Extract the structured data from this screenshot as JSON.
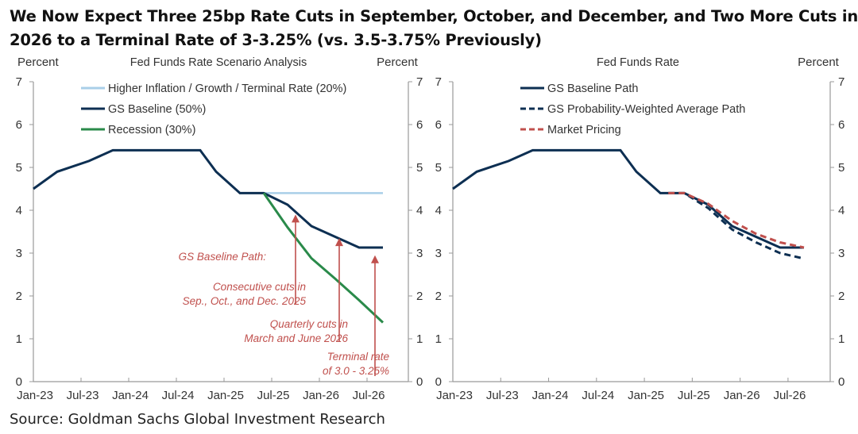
{
  "title": "We Now Expect Three 25bp Rate Cuts in September, October, and December, and Two More Cuts in 2026 to a Terminal Rate of 3-3.25% (vs. 3.5-3.75% Previously)",
  "source": "Source: Goldman Sachs Global Investment Research",
  "colors": {
    "baseline": "#0d2f52",
    "higher_inflation": "#a9cfe8",
    "recession": "#2a8a4a",
    "prob_weighted": "#0d2f52",
    "market": "#c0504d",
    "annotation": "#c0504d",
    "axis": "#999999"
  },
  "chart_data": [
    {
      "type": "line",
      "title": "Fed Funds Rate Scenario Analysis",
      "ylabel_left": "Percent",
      "ylabel_right": "Percent",
      "ylim": [
        0,
        7
      ],
      "yticks": [
        0,
        1,
        2,
        3,
        4,
        5,
        6,
        7
      ],
      "xlim_months": [
        0,
        44
      ],
      "xticks": [
        {
          "label": "Jan-23",
          "m": 0
        },
        {
          "label": "Jul-23",
          "m": 6
        },
        {
          "label": "Jan-24",
          "m": 12
        },
        {
          "label": "Jul-24",
          "m": 18
        },
        {
          "label": "Jan-25",
          "m": 24
        },
        {
          "label": "Jul-25",
          "m": 30
        },
        {
          "label": "Jan-26",
          "m": 36
        },
        {
          "label": "Jul-26",
          "m": 42
        }
      ],
      "legend_position": "top-left",
      "series": [
        {
          "key": "higher_inflation",
          "name": "Higher Inflation / Growth / Terminal Rate (20%)",
          "style": "solid",
          "points": [
            [
              29,
              4.4
            ],
            [
              44,
              4.4
            ]
          ]
        },
        {
          "key": "baseline",
          "name": "GS Baseline (50%)",
          "style": "solid",
          "points": [
            [
              0,
              4.5
            ],
            [
              3,
              4.9
            ],
            [
              7,
              5.15
            ],
            [
              10,
              5.4
            ],
            [
              21,
              5.4
            ],
            [
              23,
              4.9
            ],
            [
              26,
              4.4
            ],
            [
              29,
              4.4
            ],
            [
              32,
              4.13
            ],
            [
              35,
              3.63
            ],
            [
              38,
              3.38
            ],
            [
              41,
              3.13
            ],
            [
              44,
              3.13
            ]
          ]
        },
        {
          "key": "recession",
          "name": "Recession (30%)",
          "style": "solid",
          "points": [
            [
              29,
              4.4
            ],
            [
              32,
              3.6
            ],
            [
              35,
              2.88
            ],
            [
              38,
              2.4
            ],
            [
              41,
              1.9
            ],
            [
              44,
              1.38
            ]
          ]
        }
      ],
      "annotations": [
        {
          "lines": [
            "GS Baseline Path:"
          ]
        },
        {
          "lines": [
            "Consecutive cuts in",
            "Sep., Oct., and Dec. 2025"
          ],
          "arrow_m": 33,
          "arrow_to": 3.9
        },
        {
          "lines": [
            "Quarterly cuts in",
            "March and June 2026"
          ],
          "arrow_m": 38.5,
          "arrow_to": 3.35
        },
        {
          "lines": [
            "Terminal rate",
            "of 3.0 - 3.25%"
          ],
          "arrow_m": 43,
          "arrow_to": 2.95
        }
      ]
    },
    {
      "type": "line",
      "title": "Fed Funds Rate",
      "ylabel_left": "",
      "ylabel_right": "Percent",
      "ylim": [
        0,
        7
      ],
      "yticks": [
        0,
        1,
        2,
        3,
        4,
        5,
        6,
        7
      ],
      "xlim_months": [
        0,
        44
      ],
      "xticks": [
        {
          "label": "Jan-23",
          "m": 0
        },
        {
          "label": "Jul-23",
          "m": 6
        },
        {
          "label": "Jan-24",
          "m": 12
        },
        {
          "label": "Jul-24",
          "m": 18
        },
        {
          "label": "Jan-25",
          "m": 24
        },
        {
          "label": "Jul-25",
          "m": 30
        },
        {
          "label": "Jan-26",
          "m": 36
        },
        {
          "label": "Jul-26",
          "m": 42
        }
      ],
      "legend_position": "top-left",
      "series": [
        {
          "key": "baseline",
          "name": "GS Baseline Path",
          "style": "solid",
          "points": [
            [
              0,
              4.5
            ],
            [
              3,
              4.9
            ],
            [
              7,
              5.15
            ],
            [
              10,
              5.4
            ],
            [
              21,
              5.4
            ],
            [
              23,
              4.9
            ],
            [
              26,
              4.4
            ],
            [
              29,
              4.4
            ],
            [
              32,
              4.13
            ],
            [
              35,
              3.63
            ],
            [
              38,
              3.38
            ],
            [
              41,
              3.13
            ],
            [
              44,
              3.13
            ]
          ]
        },
        {
          "key": "prob_weighted",
          "name": "GS Probability-Weighted Average Path",
          "style": "dash",
          "points": [
            [
              27,
              4.4
            ],
            [
              29,
              4.4
            ],
            [
              32,
              4.05
            ],
            [
              35,
              3.55
            ],
            [
              38,
              3.25
            ],
            [
              41,
              3.0
            ],
            [
              44,
              2.87
            ]
          ]
        },
        {
          "key": "market",
          "name": "Market Pricing",
          "style": "dash",
          "points": [
            [
              27,
              4.4
            ],
            [
              29,
              4.4
            ],
            [
              32,
              4.15
            ],
            [
              35,
              3.75
            ],
            [
              38,
              3.45
            ],
            [
              41,
              3.25
            ],
            [
              44,
              3.13
            ]
          ]
        }
      ]
    }
  ]
}
